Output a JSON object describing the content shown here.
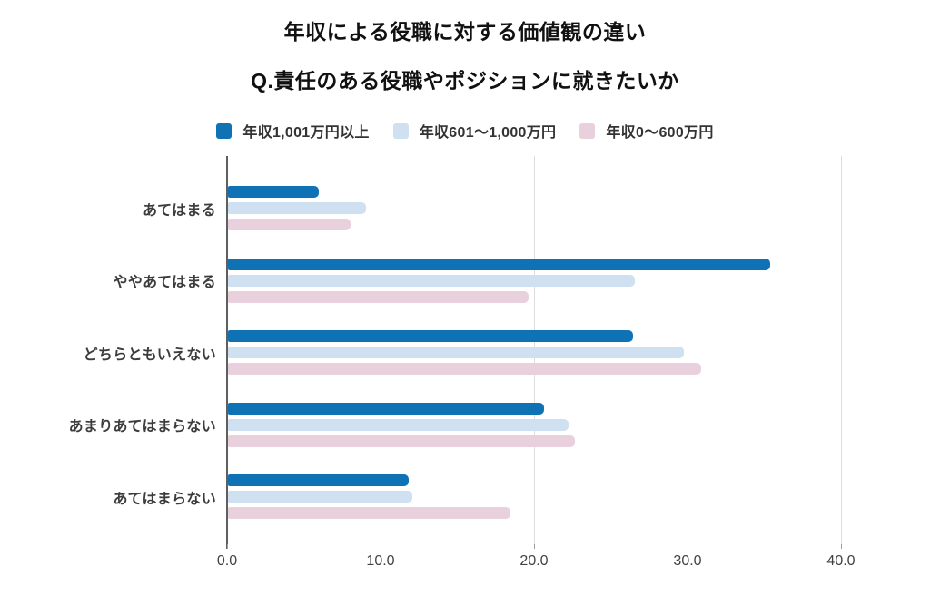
{
  "chart_data": {
    "type": "bar",
    "orientation": "horizontal",
    "title": "年収による役職に対する価値観の違い",
    "subtitle": "Q.責任のある役職やポジションに就きたいか",
    "categories": [
      "あてはまる",
      "ややあてはまる",
      "どちらともいえない",
      "あまりあてはまらない",
      "あてはまらない"
    ],
    "series": [
      {
        "name": "年収1,001万円以上",
        "color": "#0e72b5",
        "values": [
          5.9,
          35.3,
          26.4,
          20.6,
          11.8
        ]
      },
      {
        "name": "年収601〜1,000万円",
        "color": "#cfe0f1",
        "values": [
          9.0,
          26.5,
          29.7,
          22.2,
          12.0
        ]
      },
      {
        "name": "年収0〜600万円",
        "color": "#e8d1dd",
        "values": [
          8.0,
          19.6,
          30.8,
          22.6,
          18.4
        ]
      }
    ],
    "x_ticks": [
      0,
      10,
      20,
      30,
      40
    ],
    "x_tick_labels": [
      "0.0",
      "10.0",
      "20.0",
      "30.0",
      "40.0"
    ],
    "xlim": [
      0,
      43.8
    ],
    "grid": "vertical-only",
    "legend_position": "top",
    "colors": {
      "gridline": "#dcdcdc",
      "axis_line": "#5f5f5f",
      "tick_text": "#424242",
      "category_text": "#3c3c3c",
      "title_text": "#111111"
    }
  }
}
